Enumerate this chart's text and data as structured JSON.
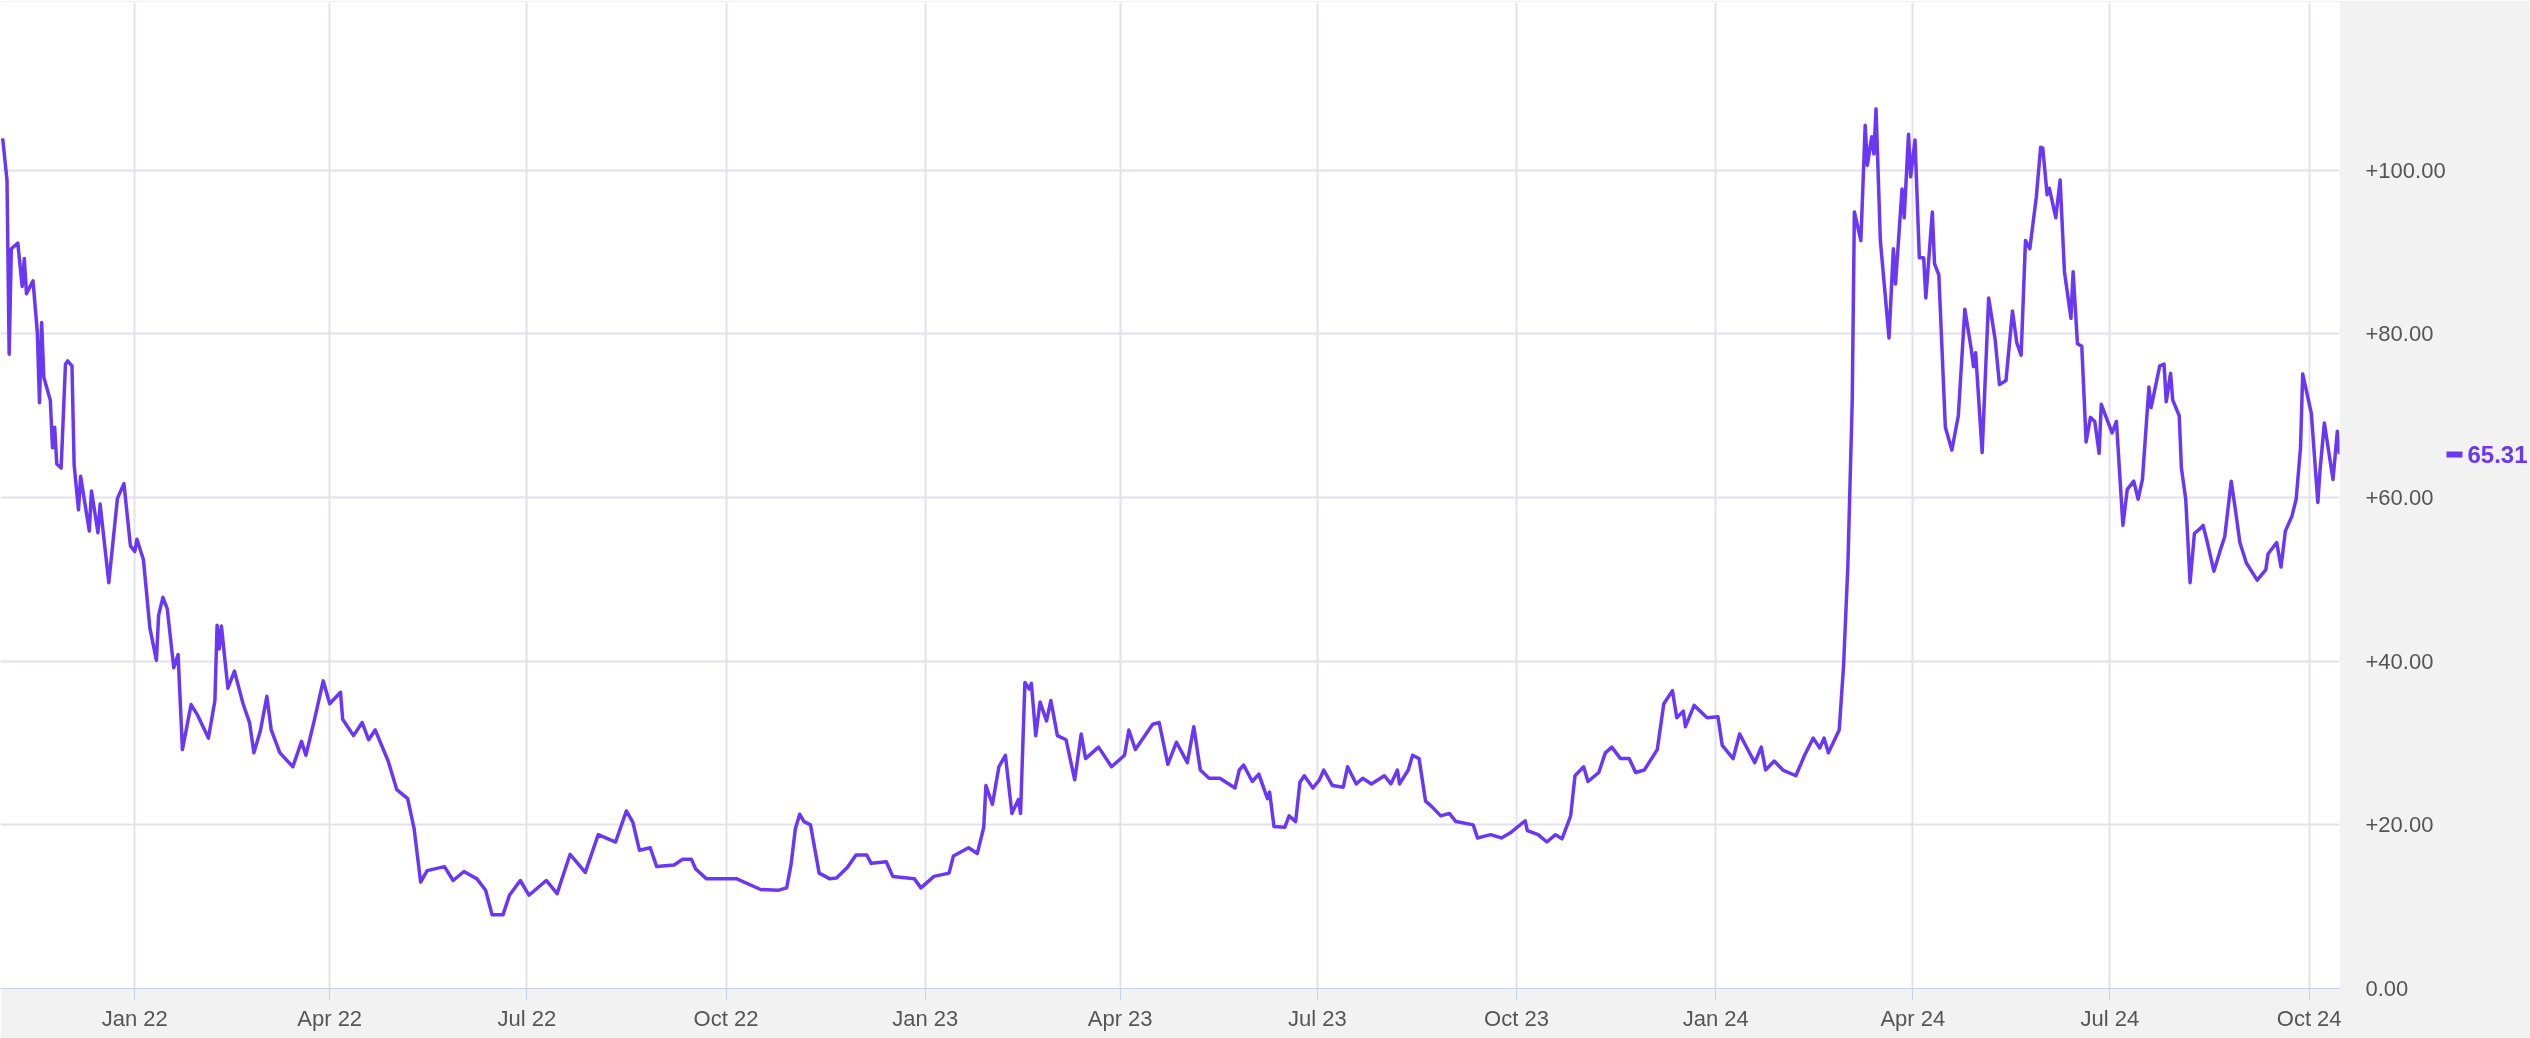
{
  "chart_data": {
    "type": "line",
    "x": [
      "2021-11-01",
      "2021-11-03",
      "2021-11-04",
      "2021-11-05",
      "2021-11-08",
      "2021-11-10",
      "2021-11-11",
      "2021-11-12",
      "2021-11-15",
      "2021-11-17",
      "2021-11-18",
      "2021-11-19",
      "2021-11-20",
      "2021-11-23",
      "2021-11-24",
      "2021-11-25",
      "2021-11-26",
      "2021-11-28",
      "2021-11-30",
      "2021-12-01",
      "2021-12-03",
      "2021-12-04",
      "2021-12-06",
      "2021-12-07",
      "2021-12-11",
      "2021-12-12",
      "2021-12-15",
      "2021-12-16",
      "2021-12-20",
      "2021-12-24",
      "2021-12-27",
      "2021-12-30",
      "2022-01-01",
      "2022-01-02",
      "2022-01-05",
      "2022-01-08",
      "2022-01-11",
      "2022-01-12",
      "2022-01-14",
      "2022-01-16",
      "2022-01-19",
      "2022-01-21",
      "2022-01-23",
      "2022-01-27",
      "2022-01-30",
      "2022-02-04",
      "2022-02-07",
      "2022-02-08",
      "2022-02-09",
      "2022-02-10",
      "2022-02-13",
      "2022-02-16",
      "2022-02-20",
      "2022-02-23",
      "2022-02-25",
      "2022-02-28",
      "2022-03-03",
      "2022-03-05",
      "2022-03-09",
      "2022-03-15",
      "2022-03-19",
      "2022-03-21",
      "2022-03-25",
      "2022-03-29",
      "2022-04-01",
      "2022-04-06",
      "2022-04-07",
      "2022-04-12",
      "2022-04-16",
      "2022-04-19",
      "2022-04-22",
      "2022-04-28",
      "2022-05-02",
      "2022-05-07",
      "2022-05-10",
      "2022-05-13",
      "2022-05-16",
      "2022-05-24",
      "2022-05-28",
      "2022-06-02",
      "2022-06-08",
      "2022-06-12",
      "2022-06-15",
      "2022-06-20",
      "2022-06-23",
      "2022-06-28",
      "2022-07-02",
      "2022-07-10",
      "2022-07-15",
      "2022-07-21",
      "2022-07-28",
      "2022-08-03",
      "2022-08-11",
      "2022-08-16",
      "2022-08-19",
      "2022-08-22",
      "2022-08-27",
      "2022-08-30",
      "2022-09-07",
      "2022-09-11",
      "2022-09-15",
      "2022-09-17",
      "2022-09-22",
      "2022-09-26",
      "2022-10-06",
      "2022-10-17",
      "2022-10-25",
      "2022-10-29",
      "2022-10-31",
      "2022-11-02",
      "2022-11-04",
      "2022-11-06",
      "2022-11-09",
      "2022-11-13",
      "2022-11-18",
      "2022-11-21",
      "2022-11-26",
      "2022-11-30",
      "2022-12-05",
      "2022-12-07",
      "2022-12-14",
      "2022-12-17",
      "2022-12-27",
      "2022-12-30",
      "2023-01-05",
      "2023-01-12",
      "2023-01-14",
      "2023-01-21",
      "2023-01-25",
      "2023-01-28",
      "2023-01-29",
      "2023-02-01",
      "2023-02-04",
      "2023-02-07",
      "2023-02-10",
      "2023-02-13",
      "2023-02-14",
      "2023-02-16",
      "2023-02-18",
      "2023-02-19",
      "2023-02-21",
      "2023-02-23",
      "2023-02-26",
      "2023-02-28",
      "2023-03-03",
      "2023-03-07",
      "2023-03-11",
      "2023-03-14",
      "2023-03-16",
      "2023-03-22",
      "2023-03-28",
      "2023-04-03",
      "2023-04-05",
      "2023-04-08",
      "2023-04-16",
      "2023-04-19",
      "2023-04-23",
      "2023-04-27",
      "2023-05-02",
      "2023-05-05",
      "2023-05-08",
      "2023-05-12",
      "2023-05-17",
      "2023-05-24",
      "2023-05-26",
      "2023-05-28",
      "2023-06-01",
      "2023-06-04",
      "2023-06-08",
      "2023-06-09",
      "2023-06-11",
      "2023-06-16",
      "2023-06-18",
      "2023-06-21",
      "2023-06-23",
      "2023-06-25",
      "2023-06-29",
      "2023-07-02",
      "2023-07-04",
      "2023-07-08",
      "2023-07-13",
      "2023-07-15",
      "2023-07-19",
      "2023-07-22",
      "2023-07-26",
      "2023-08-01",
      "2023-08-04",
      "2023-08-07",
      "2023-08-08",
      "2023-08-12",
      "2023-08-14",
      "2023-08-17",
      "2023-08-20",
      "2023-08-23",
      "2023-08-27",
      "2023-08-31",
      "2023-09-03",
      "2023-09-11",
      "2023-09-13",
      "2023-09-19",
      "2023-09-24",
      "2023-09-28",
      "2023-10-05",
      "2023-10-06",
      "2023-10-11",
      "2023-10-15",
      "2023-10-19",
      "2023-10-22",
      "2023-10-26",
      "2023-10-28",
      "2023-11-01",
      "2023-11-03",
      "2023-11-08",
      "2023-11-11",
      "2023-11-14",
      "2023-11-18",
      "2023-11-22",
      "2023-11-25",
      "2023-11-29",
      "2023-12-05",
      "2023-12-08",
      "2023-12-12",
      "2023-12-14",
      "2023-12-17",
      "2023-12-18",
      "2023-12-22",
      "2023-12-28",
      "2024-01-02",
      "2024-01-04",
      "2024-01-09",
      "2024-01-12",
      "2024-01-19",
      "2024-01-22",
      "2024-01-24",
      "2024-01-28",
      "2024-02-01",
      "2024-02-07",
      "2024-02-11",
      "2024-02-15",
      "2024-02-18",
      "2024-02-20",
      "2024-02-22",
      "2024-02-27",
      "2024-02-29",
      "2024-03-02",
      "2024-03-04",
      "2024-03-05",
      "2024-03-08",
      "2024-03-10",
      "2024-03-11",
      "2024-03-13",
      "2024-03-14",
      "2024-03-15",
      "2024-03-17",
      "2024-03-21",
      "2024-03-23",
      "2024-03-24",
      "2024-03-27",
      "2024-03-28",
      "2024-03-30",
      "2024-03-31",
      "2024-04-02",
      "2024-04-04",
      "2024-04-06",
      "2024-04-07",
      "2024-04-10",
      "2024-04-11",
      "2024-04-13",
      "2024-04-16",
      "2024-04-19",
      "2024-04-22",
      "2024-04-25",
      "2024-04-28",
      "2024-04-29",
      "2024-04-30",
      "2024-05-03",
      "2024-05-06",
      "2024-05-09",
      "2024-05-11",
      "2024-05-14",
      "2024-05-17",
      "2024-05-19",
      "2024-05-21",
      "2024-05-23",
      "2024-05-25",
      "2024-05-28",
      "2024-05-30",
      "2024-05-31",
      "2024-06-02",
      "2024-06-03",
      "2024-06-06",
      "2024-06-08",
      "2024-06-10",
      "2024-06-13",
      "2024-06-14",
      "2024-06-16",
      "2024-06-18",
      "2024-06-20",
      "2024-06-22",
      "2024-06-24",
      "2024-06-26",
      "2024-06-27",
      "2024-07-02",
      "2024-07-04",
      "2024-07-07",
      "2024-07-09",
      "2024-07-12",
      "2024-07-14",
      "2024-07-16",
      "2024-07-19",
      "2024-07-20",
      "2024-07-24",
      "2024-07-26",
      "2024-07-27",
      "2024-07-29",
      "2024-07-30",
      "2024-08-02",
      "2024-08-03",
      "2024-08-05",
      "2024-08-07",
      "2024-08-09",
      "2024-08-12",
      "2024-08-13",
      "2024-08-15",
      "2024-08-18",
      "2024-08-21",
      "2024-08-23",
      "2024-08-26",
      "2024-08-28",
      "2024-08-30",
      "2024-09-02",
      "2024-09-07",
      "2024-09-11",
      "2024-09-12",
      "2024-09-16",
      "2024-09-18",
      "2024-09-20",
      "2024-09-23",
      "2024-09-25",
      "2024-09-27",
      "2024-09-28",
      "2024-10-02",
      "2024-10-05",
      "2024-10-06",
      "2024-10-08",
      "2024-10-12",
      "2024-10-14",
      "2024-10-15"
    ],
    "series": [
      {
        "color": "#6a38f4",
        "values": [
          103.9,
          98.8,
          77.5,
          90.4,
          91.1,
          85.8,
          89.2,
          84.9,
          86.5,
          80.2,
          71.6,
          81.4,
          74.7,
          71.9,
          66.1,
          68.6,
          64.1,
          63.6,
          76.3,
          76.7,
          76.1,
          64.0,
          58.5,
          62.6,
          55.9,
          60.8,
          55.7,
          59.2,
          49.6,
          59.9,
          61.7,
          54.1,
          53.4,
          54.9,
          52.4,
          44.0,
          40.1,
          45.6,
          47.8,
          46.4,
          39.2,
          40.8,
          29.2,
          34.7,
          33.4,
          30.6,
          35.2,
          44.4,
          41.5,
          44.3,
          36.7,
          38.8,
          34.8,
          32.5,
          28.8,
          31.5,
          35.7,
          31.6,
          28.8,
          27.1,
          30.2,
          28.5,
          32.9,
          37.6,
          34.8,
          36.2,
          32.9,
          30.9,
          32.5,
          30.4,
          31.6,
          27.8,
          24.3,
          23.2,
          19.5,
          13.0,
          14.4,
          14.9,
          13.2,
          14.3,
          13.4,
          12.0,
          9.0,
          9.0,
          11.4,
          13.2,
          11.4,
          13.2,
          11.6,
          16.4,
          14.2,
          18.8,
          17.9,
          21.7,
          20.3,
          16.9,
          17.2,
          14.9,
          15.1,
          15.8,
          15.8,
          14.6,
          13.4,
          13.4,
          13.4,
          12.1,
          12.0,
          12.3,
          15.1,
          19.5,
          21.3,
          20.4,
          20.0,
          14.1,
          13.4,
          13.5,
          14.8,
          16.3,
          16.3,
          15.3,
          15.5,
          13.7,
          13.4,
          12.3,
          13.7,
          14.1,
          16.2,
          17.2,
          16.5,
          19.7,
          24.8,
          22.5,
          27.1,
          28.5,
          21.4,
          23.1,
          21.4,
          37.4,
          36.6,
          37.3,
          30.9,
          35.0,
          32.7,
          35.2,
          30.9,
          30.4,
          25.5,
          31.1,
          28.1,
          29.5,
          27.1,
          28.5,
          31.6,
          29.2,
          32.3,
          32.5,
          27.4,
          30.1,
          27.6,
          32.0,
          26.7,
          25.7,
          25.7,
          24.5,
          26.7,
          27.3,
          25.3,
          26.2,
          23.2,
          24.0,
          19.8,
          19.7,
          21.1,
          20.4,
          25.2,
          26.0,
          24.5,
          25.5,
          26.7,
          24.8,
          24.6,
          27.1,
          25.0,
          25.7,
          25.0,
          26.0,
          25.0,
          26.7,
          25.0,
          26.7,
          28.5,
          28.1,
          22.9,
          22.2,
          21.1,
          21.4,
          20.4,
          20.0,
          18.4,
          18.8,
          18.4,
          19.0,
          20.5,
          19.3,
          18.8,
          17.9,
          18.8,
          18.3,
          21.1,
          26.0,
          27.1,
          25.3,
          26.4,
          28.8,
          29.5,
          28.1,
          28.1,
          26.4,
          26.7,
          29.2,
          34.8,
          36.4,
          33.1,
          33.9,
          32.0,
          34.6,
          33.1,
          33.2,
          29.7,
          28.1,
          31.1,
          27.6,
          29.5,
          26.7,
          27.8,
          26.7,
          26.0,
          28.5,
          30.6,
          29.4,
          30.6,
          28.8,
          31.6,
          39.4,
          51.7,
          71.7,
          94.9,
          91.4,
          105.5,
          100.6,
          104.1,
          102.0,
          107.5,
          91.4,
          79.5,
          90.4,
          86.1,
          97.7,
          94.2,
          104.4,
          99.2,
          103.7,
          89.3,
          89.3,
          84.4,
          94.9,
          88.6,
          87.2,
          68.6,
          65.8,
          70.0,
          83.0,
          78.1,
          76.0,
          77.7,
          65.5,
          84.4,
          79.3,
          73.8,
          74.3,
          82.8,
          78.9,
          77.4,
          91.4,
          90.4,
          96.7,
          102.8,
          102.7,
          97.0,
          97.8,
          94.2,
          98.8,
          87.6,
          81.9,
          87.6,
          78.8,
          78.5,
          66.8,
          69.8,
          69.3,
          65.4,
          71.4,
          67.9,
          69.3,
          56.6,
          61.0,
          62.0,
          59.8,
          62.2,
          73.5,
          71.0,
          76.1,
          76.3,
          71.7,
          75.2,
          71.9,
          70.0,
          63.6,
          59.8,
          49.6,
          55.6,
          56.3,
          56.6,
          54.5,
          51.0,
          53.6,
          55.2,
          62.0,
          58.4,
          54.5,
          52.0,
          49.9,
          51.2,
          53.1,
          54.5,
          51.5,
          55.9,
          57.7,
          59.8,
          66.1,
          75.1,
          70.3,
          59.4,
          63.3,
          69.1,
          62.2,
          68.1,
          65.31
        ]
      }
    ],
    "xlim": [
      "2021-10-31",
      "2024-10-15"
    ],
    "xticks": [
      {
        "value": "2022-01-01",
        "label": "Jan 22"
      },
      {
        "value": "2022-04-01",
        "label": "Apr 22"
      },
      {
        "value": "2022-07-01",
        "label": "Jul 22"
      },
      {
        "value": "2022-10-01",
        "label": "Oct 22"
      },
      {
        "value": "2023-01-01",
        "label": "Jan 23"
      },
      {
        "value": "2023-04-01",
        "label": "Apr 23"
      },
      {
        "value": "2023-07-01",
        "label": "Jul 23"
      },
      {
        "value": "2023-10-01",
        "label": "Oct 23"
      },
      {
        "value": "2024-01-01",
        "label": "Jan 24"
      },
      {
        "value": "2024-04-01",
        "label": "Apr 24"
      },
      {
        "value": "2024-07-01",
        "label": "Jul 24"
      },
      {
        "value": "2024-10-01",
        "label": "Oct 24"
      }
    ],
    "ylim": [
      0,
      120.5
    ],
    "yticks": [
      {
        "value": 0,
        "label": "0.00"
      },
      {
        "value": 20,
        "label": "+20.00"
      },
      {
        "value": 40,
        "label": "+40.00"
      },
      {
        "value": 60,
        "label": "+60.00"
      },
      {
        "value": 80,
        "label": "+80.00"
      },
      {
        "value": 100,
        "label": "+100.00"
      }
    ],
    "annotations": [
      "65.31"
    ],
    "grid": true,
    "marker": "none",
    "line_style": "solid"
  }
}
